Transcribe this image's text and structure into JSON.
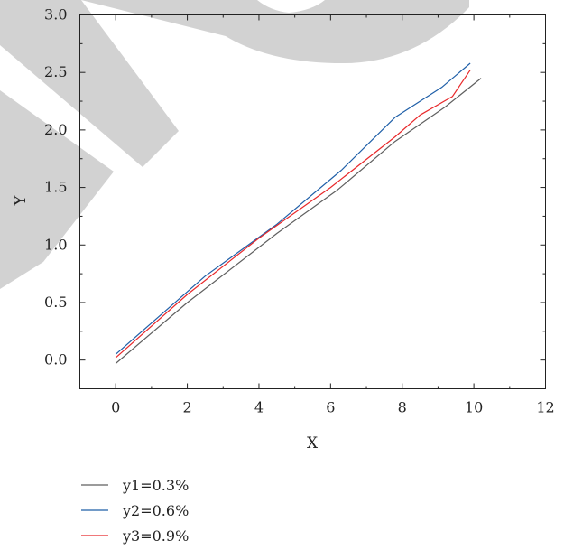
{
  "chart_data": {
    "type": "line",
    "xlabel": "X",
    "ylabel": "Y",
    "xlim": [
      -1,
      12
    ],
    "ylim": [
      -0.25,
      3.0
    ],
    "x_ticks": [
      0,
      2,
      4,
      6,
      8,
      10,
      12
    ],
    "x_tick_labels": [
      "0",
      "2",
      "4",
      "6",
      "8",
      "10",
      "12"
    ],
    "y_ticks": [
      0.0,
      0.5,
      1.0,
      1.5,
      2.0,
      2.5,
      3.0
    ],
    "y_tick_labels": [
      "0.0",
      "0.5",
      "1.0",
      "1.5",
      "2.0",
      "2.5",
      "3.0"
    ],
    "grid": false,
    "legend_position": "bottom-left below plot",
    "series": [
      {
        "name": "y1=0.3%",
        "color": "#5f5f5f",
        "points": [
          [
            0.0,
            -0.03
          ],
          [
            2.0,
            0.5
          ],
          [
            4.5,
            1.1
          ],
          [
            6.2,
            1.48
          ],
          [
            7.8,
            1.9
          ],
          [
            9.2,
            2.2
          ],
          [
            10.2,
            2.45
          ]
        ]
      },
      {
        "name": "y2=0.6%",
        "color": "#1f5fa8",
        "points": [
          [
            0.0,
            0.05
          ],
          [
            2.5,
            0.73
          ],
          [
            4.5,
            1.18
          ],
          [
            6.3,
            1.65
          ],
          [
            7.8,
            2.11
          ],
          [
            9.1,
            2.37
          ],
          [
            9.9,
            2.58
          ]
        ]
      },
      {
        "name": "y3=0.9%",
        "color": "#e8282a",
        "points": [
          [
            0.0,
            0.02
          ],
          [
            2.0,
            0.57
          ],
          [
            4.0,
            1.06
          ],
          [
            6.0,
            1.5
          ],
          [
            7.8,
            1.94
          ],
          [
            8.5,
            2.13
          ],
          [
            9.4,
            2.29
          ],
          [
            9.9,
            2.52
          ]
        ]
      }
    ]
  }
}
